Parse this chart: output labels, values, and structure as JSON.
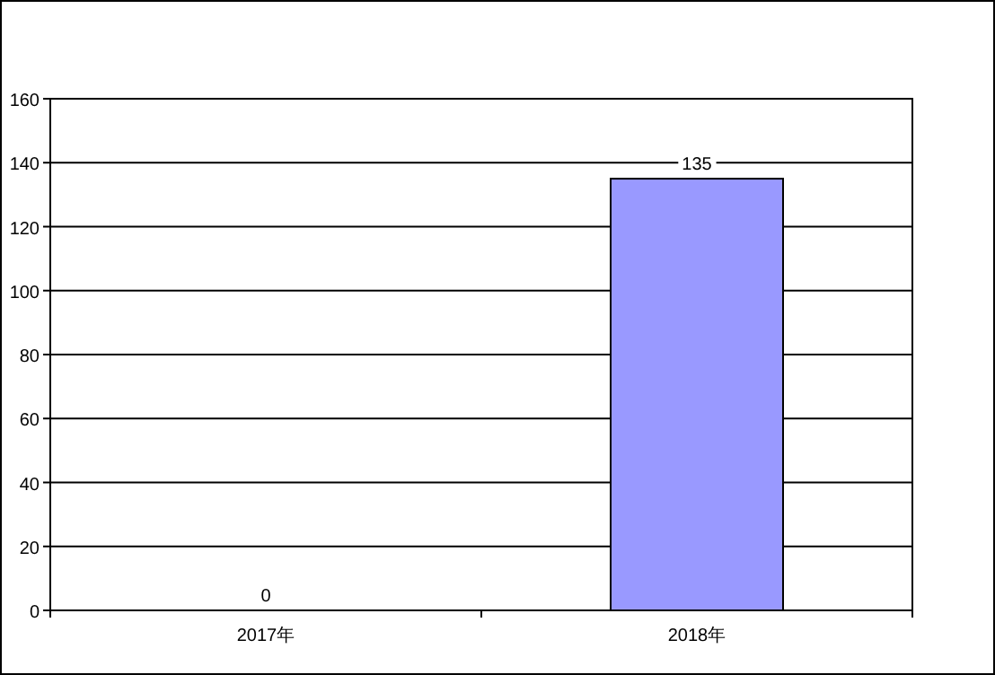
{
  "chart_data": {
    "type": "bar",
    "categories": [
      "2017年",
      "2018年"
    ],
    "values": [
      0,
      135
    ],
    "color": "#9999ff",
    "ylim": [
      0,
      160
    ],
    "yticks": [
      0,
      20,
      40,
      60,
      80,
      100,
      120,
      140,
      160
    ],
    "grid": "y",
    "data_labels": true
  }
}
